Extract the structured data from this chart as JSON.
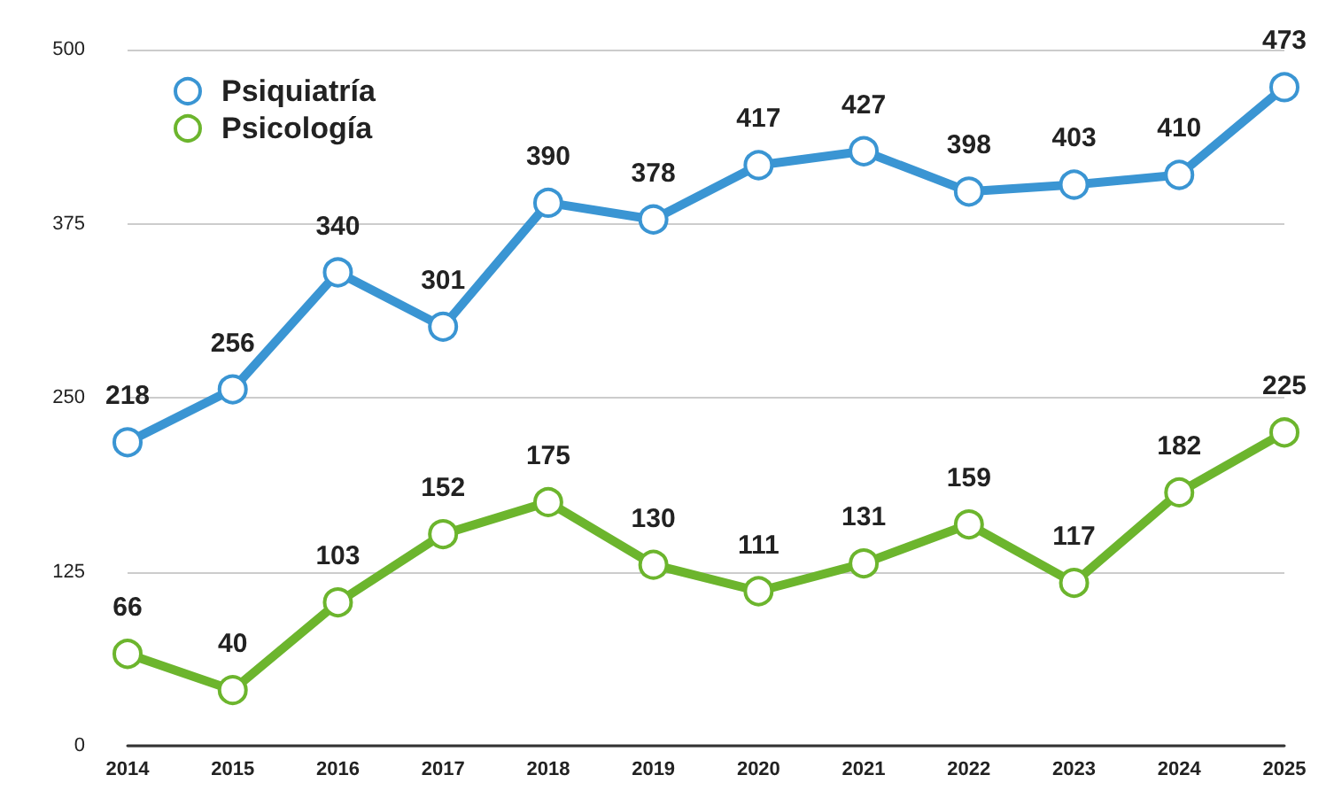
{
  "chart_data": {
    "type": "line",
    "categories": [
      "2014",
      "2015",
      "2016",
      "2017",
      "2018",
      "2019",
      "2020",
      "2021",
      "2022",
      "2023",
      "2024",
      "2025"
    ],
    "series": [
      {
        "name": "Psiquiatría",
        "color": "#3a95d3",
        "values": [
          218,
          256,
          340,
          301,
          390,
          378,
          417,
          427,
          398,
          403,
          410,
          473
        ]
      },
      {
        "name": "Psicología",
        "color": "#6cb52d",
        "values": [
          66,
          40,
          103,
          152,
          175,
          130,
          111,
          131,
          159,
          117,
          182,
          225
        ]
      }
    ],
    "ylim": [
      0,
      500
    ],
    "yticks": [
      0,
      125,
      250,
      375,
      500
    ],
    "grid": "y",
    "legend": "top left",
    "marker": "circle",
    "line_style": "solid",
    "data_labels": true
  }
}
